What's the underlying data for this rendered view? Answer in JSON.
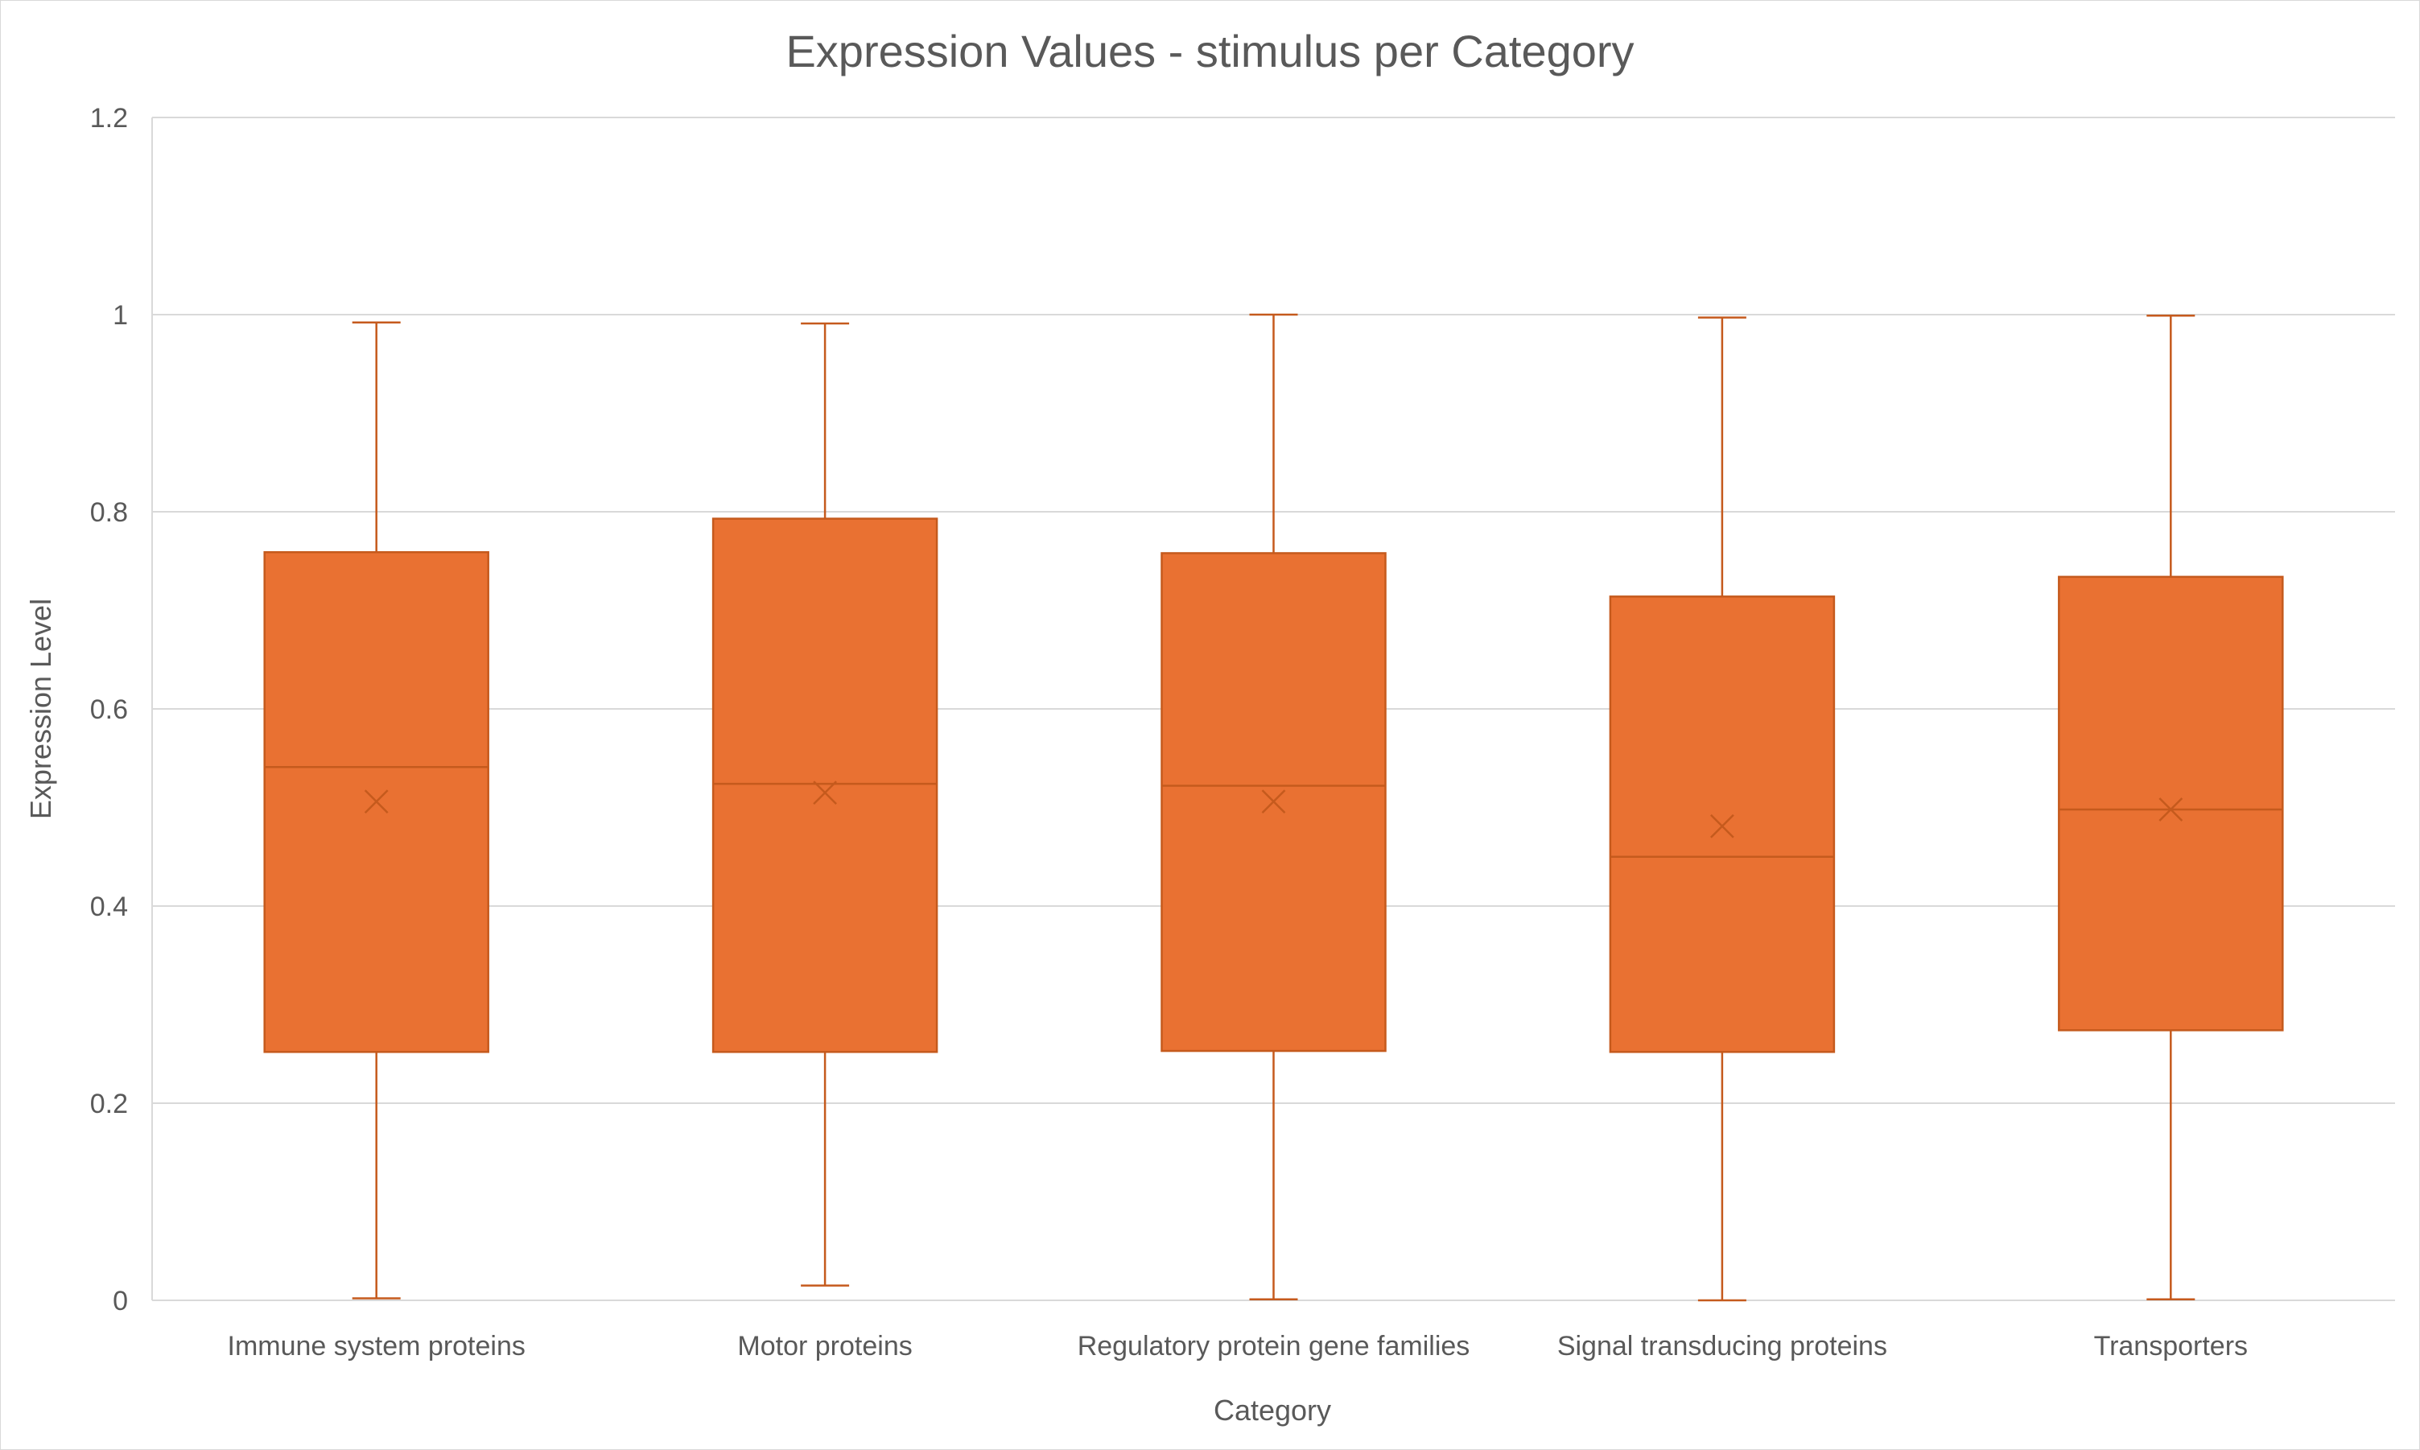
{
  "chart_data": {
    "type": "box",
    "title": "Expression Values - stimulus per Category",
    "xlabel": "Category",
    "ylabel": "Expression Level",
    "ylim": [
      0,
      1.2
    ],
    "yticks": [
      0,
      0.2,
      0.4,
      0.6,
      0.8,
      1,
      1.2
    ],
    "ytick_labels": [
      "0",
      "0.2",
      "0.4",
      "0.6",
      "0.8",
      "1",
      "1.2"
    ],
    "grid": true,
    "legend": "none",
    "colors": {
      "box_fill": "#E97132",
      "box_stroke": "#C55A1D",
      "grid": "#D9D9D9",
      "text": "#595959"
    },
    "categories": [
      "Immune system proteins",
      "Motor proteins",
      "Regulatory protein gene families",
      "Signal transducing proteins",
      "Transporters"
    ],
    "boxes": [
      {
        "min": 0.002,
        "q1": 0.252,
        "median": 0.541,
        "mean": 0.506,
        "q3": 0.759,
        "max": 0.992
      },
      {
        "min": 0.015,
        "q1": 0.252,
        "median": 0.524,
        "mean": 0.515,
        "q3": 0.793,
        "max": 0.991
      },
      {
        "min": 0.001,
        "q1": 0.253,
        "median": 0.522,
        "mean": 0.506,
        "q3": 0.758,
        "max": 1.0
      },
      {
        "min": 0.0,
        "q1": 0.252,
        "median": 0.45,
        "mean": 0.481,
        "q3": 0.714,
        "max": 0.997
      },
      {
        "min": 0.001,
        "q1": 0.274,
        "median": 0.498,
        "mean": 0.498,
        "q3": 0.734,
        "max": 0.999
      }
    ]
  }
}
